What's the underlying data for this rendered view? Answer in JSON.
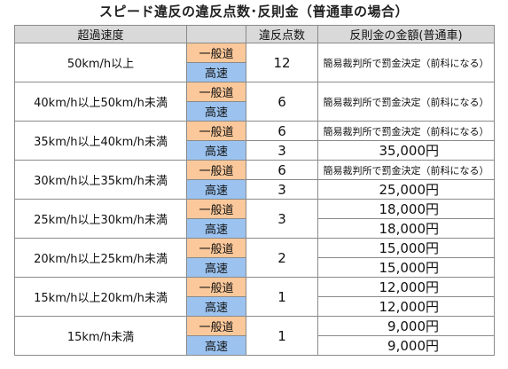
{
  "title": "スピード違反の違反点数･反則金（普通車の場合）",
  "headers": {
    "speed": "超過速度",
    "road": "",
    "points": "違反点数",
    "fine": "反則金の金額(普通車)"
  },
  "road_types": {
    "general": "一般道",
    "highway": "高速"
  },
  "colors": {
    "header_bg": "#d9d9d9",
    "general_road_bg": "#fac89a",
    "highway_bg": "#9cc3f0",
    "border": "#8a8a8a"
  },
  "rows": [
    {
      "speed": "50km/h以上",
      "general": {
        "points": "12",
        "fine": "簡易裁判所で罰金決定（前科になる）"
      },
      "highway": {
        "points": "",
        "fine": ""
      }
    },
    {
      "speed": "40km/h以上50km/h未満",
      "general": {
        "points": "6",
        "fine": "簡易裁判所で罰金決定（前科になる）"
      },
      "highway": {
        "points": "",
        "fine": ""
      }
    },
    {
      "speed": "35km/h以上40km/h未満",
      "general": {
        "points": "6",
        "fine": "簡易裁判所で罰金決定（前科になる）"
      },
      "highway": {
        "points": "3",
        "fine": "35,000円"
      }
    },
    {
      "speed": "30km/h以上35km/h未満",
      "general": {
        "points": "6",
        "fine": "簡易裁判所で罰金決定（前科になる）"
      },
      "highway": {
        "points": "3",
        "fine": "25,000円"
      }
    },
    {
      "speed": "25km/h以上30km/h未満",
      "general": {
        "points": "3",
        "fine": "18,000円"
      },
      "highway": {
        "points": "",
        "fine": "18,000円"
      }
    },
    {
      "speed": "20km/h以上25km/h未満",
      "general": {
        "points": "2",
        "fine": "15,000円"
      },
      "highway": {
        "points": "",
        "fine": "15,000円"
      }
    },
    {
      "speed": "15km/h以上20km/h未満",
      "general": {
        "points": "1",
        "fine": "12,000円"
      },
      "highway": {
        "points": "",
        "fine": "12,000円"
      }
    },
    {
      "speed": "15km/h未満",
      "general": {
        "points": "1",
        "fine": "9,000円"
      },
      "highway": {
        "points": "",
        "fine": "9,000円"
      }
    }
  ]
}
